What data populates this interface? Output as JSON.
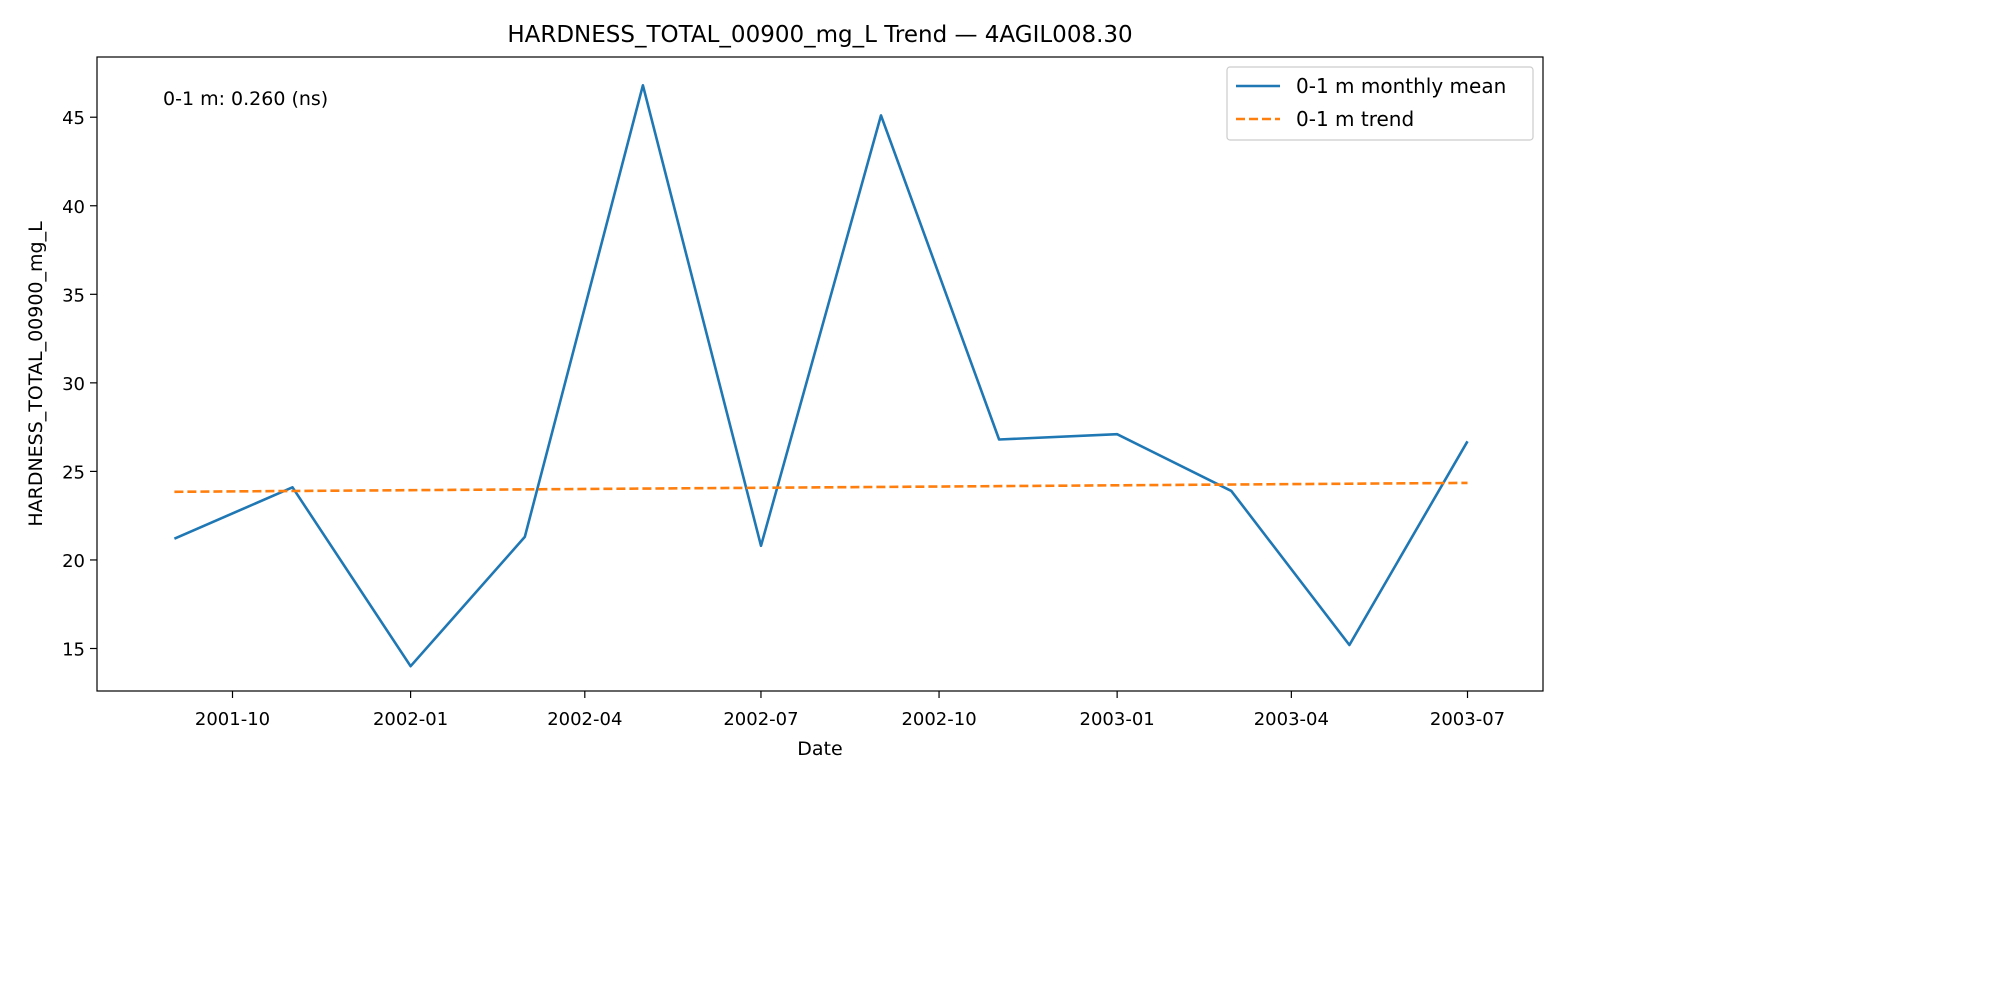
{
  "chart_data": {
    "type": "line",
    "title": "HARDNESS_TOTAL_00900_mg_L Trend — 4AGIL008.30",
    "xlabel": "Date",
    "ylabel": "HARDNESS_TOTAL_00900_mg_L",
    "x_tick_labels": [
      "2001-10",
      "2002-01",
      "2002-04",
      "2002-07",
      "2002-10",
      "2003-01",
      "2003-04",
      "2003-07"
    ],
    "x_tick_dates": [
      "2001-10-01",
      "2002-01-01",
      "2002-04-01",
      "2002-07-01",
      "2002-10-01",
      "2003-01-01",
      "2003-04-01",
      "2003-07-01"
    ],
    "xlim": [
      "2001-07-23",
      "2003-08-09"
    ],
    "y_ticks": [
      15,
      20,
      25,
      30,
      35,
      40,
      45
    ],
    "ylim": [
      12.6,
      48.4
    ],
    "annotation": "0-1 m: 0.260 (ns)",
    "legend_position": "upper-right",
    "grid": false,
    "series": [
      {
        "name": "0-1 m monthly mean",
        "style": "solid",
        "color": "#1f77b4",
        "x": [
          "2001-09-01",
          "2001-11-01",
          "2002-01-01",
          "2002-03-01",
          "2002-05-01",
          "2002-07-01",
          "2002-09-01",
          "2002-11-01",
          "2003-01-01",
          "2003-03-01",
          "2003-05-01",
          "2003-07-01"
        ],
        "y": [
          21.2,
          24.1,
          14.0,
          21.3,
          46.8,
          20.8,
          45.1,
          26.8,
          27.1,
          23.9,
          15.2,
          26.7
        ]
      },
      {
        "name": "0-1 m trend",
        "style": "dashed",
        "color": "#ff7f0e",
        "x": [
          "2001-09-01",
          "2003-07-01"
        ],
        "y": [
          23.85,
          24.35
        ]
      }
    ]
  }
}
